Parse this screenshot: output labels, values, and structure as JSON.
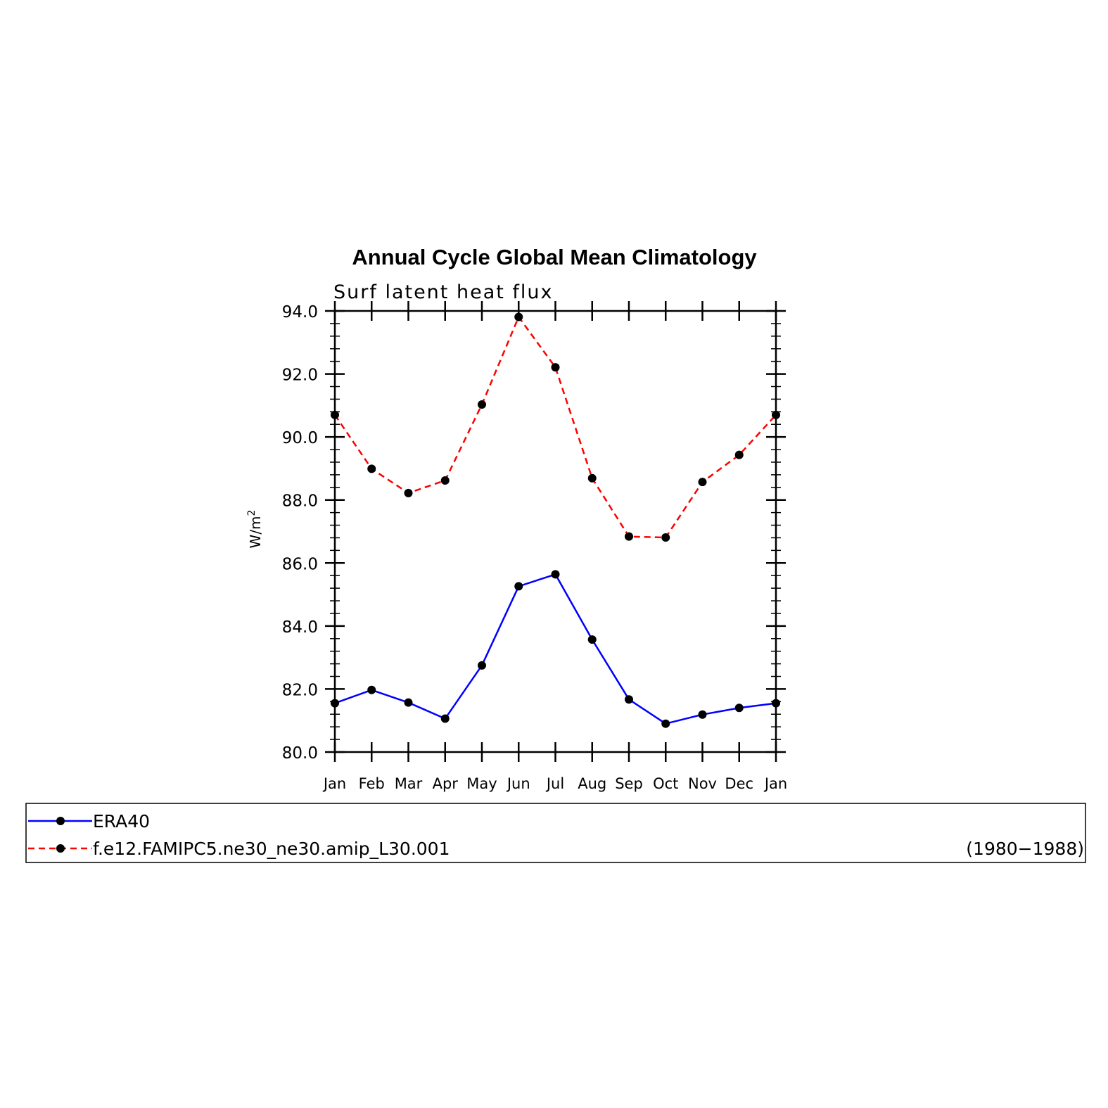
{
  "chart_data": {
    "type": "line",
    "title": "Annual Cycle Global Mean Climatology",
    "subtitle": "Surf latent heat flux",
    "ylabel": "W/m",
    "ylabel_sup": "2",
    "ylim": [
      80.0,
      94.0
    ],
    "yticks": [
      "80.0",
      "82.0",
      "84.0",
      "86.0",
      "88.0",
      "90.0",
      "92.0",
      "94.0"
    ],
    "categories": [
      "Jan",
      "Feb",
      "Mar",
      "Apr",
      "May",
      "Jun",
      "Jul",
      "Aug",
      "Sep",
      "Oct",
      "Nov",
      "Dec",
      "Jan"
    ],
    "series": [
      {
        "name": "ERA40",
        "color": "#0000ff",
        "style": "solid",
        "values": [
          81.55,
          81.97,
          81.57,
          81.06,
          82.75,
          85.26,
          85.64,
          83.57,
          81.67,
          80.9,
          81.19,
          81.4,
          81.55
        ]
      },
      {
        "name": "f.e12.FAMIPC5.ne30_ne30.amip_L30.001",
        "color": "#ff0000",
        "style": "dashed",
        "values": [
          90.7,
          88.99,
          88.22,
          88.62,
          91.03,
          93.81,
          92.21,
          88.69,
          86.84,
          86.81,
          88.57,
          89.43,
          90.7
        ]
      }
    ],
    "legend": {
      "placement": "bottom",
      "period": "(1980−1988)"
    },
    "marker_color": "#000000",
    "grid": false
  }
}
